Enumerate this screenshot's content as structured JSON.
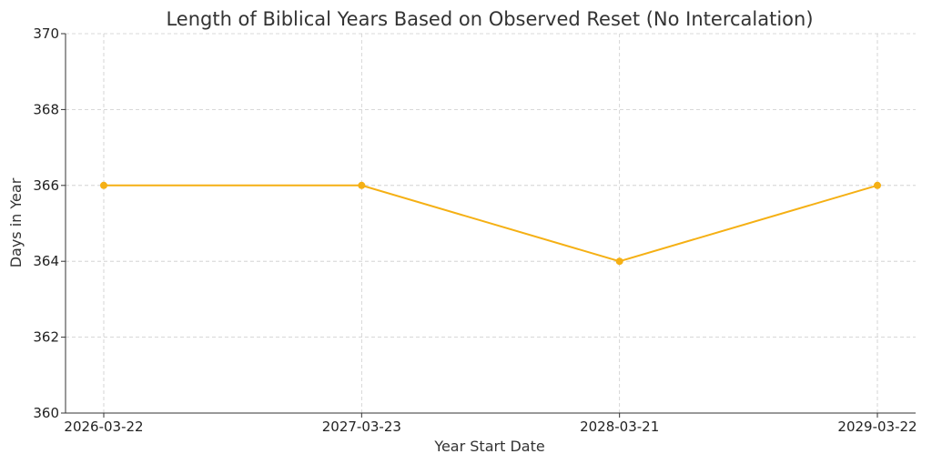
{
  "chart_data": {
    "type": "line",
    "title": "Length of Biblical Years Based on Observed Reset (No Intercalation)",
    "xlabel": "Year Start Date",
    "ylabel": "Days in Year",
    "categories": [
      "2026-03-22",
      "2027-03-23",
      "2028-03-21",
      "2029-03-22"
    ],
    "series": [
      {
        "values": [
          366,
          366,
          364,
          366
        ],
        "color": "#f5b014"
      }
    ],
    "ylim": [
      360,
      370
    ],
    "yticks": [
      "360",
      "362",
      "364",
      "366",
      "368",
      "370"
    ],
    "grid": true,
    "marker": "circle"
  }
}
